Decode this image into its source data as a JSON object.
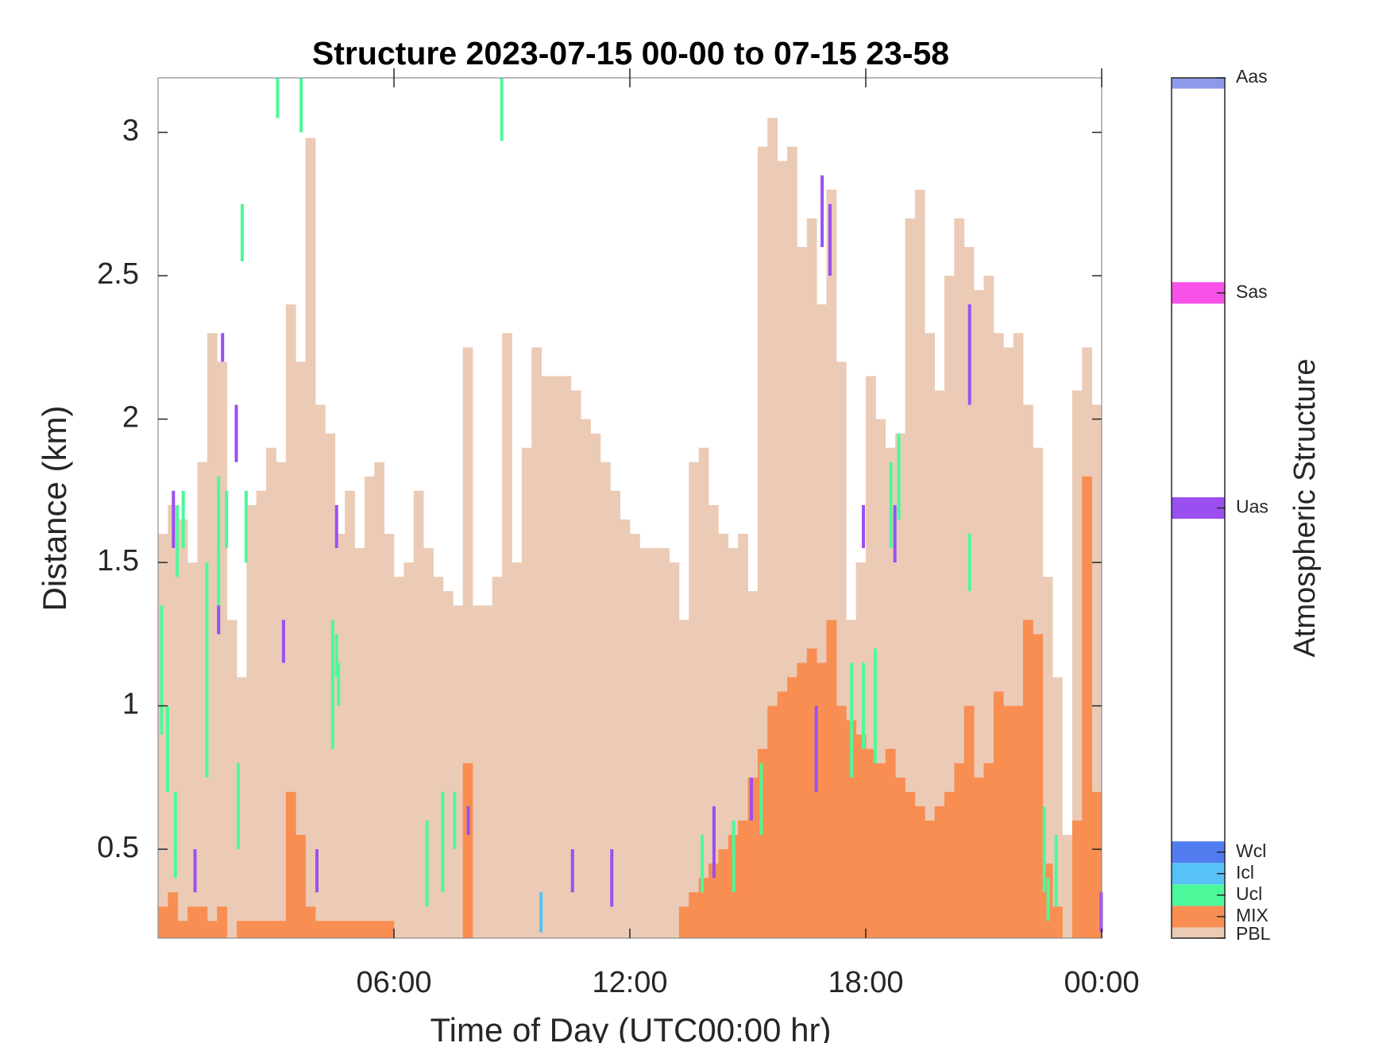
{
  "chart_data": {
    "type": "structure",
    "title": "Structure 2023-07-15 00-00 to 07-15 23-58",
    "xlabel": "Time of Day (UTC00:00 hr)",
    "ylabel": "Distance (km)",
    "xlim": [
      0,
      24
    ],
    "xticks": [
      {
        "value": 6,
        "label": "06:00"
      },
      {
        "value": 12,
        "label": "12:00"
      },
      {
        "value": 18,
        "label": "18:00"
      },
      {
        "value": 24,
        "label": "00:00"
      }
    ],
    "ylim": [
      0.19,
      3.19
    ],
    "yticks": [
      0.5,
      1,
      1.5,
      2,
      2.5,
      3
    ],
    "bin_width": 0.25,
    "x": [
      0,
      0.25,
      0.5,
      0.75,
      1,
      1.25,
      1.5,
      1.75,
      2,
      2.25,
      2.5,
      2.75,
      3,
      3.25,
      3.5,
      3.75,
      4,
      4.25,
      4.5,
      4.75,
      5,
      5.25,
      5.5,
      5.75,
      6,
      6.25,
      6.5,
      6.75,
      7,
      7.25,
      7.5,
      7.75,
      8,
      8.25,
      8.5,
      8.75,
      9,
      9.25,
      9.5,
      9.75,
      10,
      10.25,
      10.5,
      10.75,
      11,
      11.25,
      11.5,
      11.75,
      12,
      12.25,
      12.5,
      12.75,
      13,
      13.25,
      13.5,
      13.75,
      14,
      14.25,
      14.5,
      14.75,
      15,
      15.25,
      15.5,
      15.75,
      16,
      16.25,
      16.5,
      16.75,
      17,
      17.25,
      17.5,
      17.75,
      18,
      18.25,
      18.5,
      18.75,
      19,
      19.25,
      19.5,
      19.75,
      20,
      20.25,
      20.5,
      20.75,
      21,
      21.25,
      21.5,
      21.75,
      22,
      22.25,
      22.5,
      22.75,
      23,
      23.25,
      23.5,
      23.75
    ],
    "series": [
      {
        "name": "PBL",
        "values": [
          1.6,
          1.7,
          1.65,
          1.5,
          1.85,
          2.3,
          2.2,
          1.3,
          1.1,
          1.7,
          1.75,
          1.9,
          1.85,
          2.4,
          2.2,
          2.98,
          2.05,
          1.95,
          1.6,
          1.75,
          1.55,
          1.8,
          1.85,
          1.6,
          1.45,
          1.5,
          1.75,
          1.55,
          1.45,
          1.4,
          1.35,
          2.25,
          1.35,
          1.35,
          1.45,
          2.3,
          1.5,
          1.9,
          2.25,
          2.15,
          2.15,
          2.15,
          2.1,
          2.0,
          1.95,
          1.85,
          1.75,
          1.65,
          1.6,
          1.55,
          1.55,
          1.55,
          1.5,
          1.3,
          1.85,
          1.9,
          1.7,
          1.6,
          1.55,
          1.6,
          1.4,
          2.95,
          3.05,
          2.9,
          2.95,
          2.6,
          2.7,
          2.4,
          2.8,
          2.2,
          1.3,
          1.5,
          2.15,
          2.0,
          1.9,
          1.95,
          2.7,
          2.8,
          2.3,
          2.1,
          2.5,
          2.7,
          2.6,
          2.45,
          2.5,
          2.3,
          2.25,
          2.3,
          2.05,
          1.9,
          1.45,
          1.1,
          0.55,
          2.1,
          2.25,
          2.05
        ]
      },
      {
        "name": "MIX",
        "values": [
          0.3,
          0.35,
          0.25,
          0.3,
          0.3,
          0.25,
          0.3,
          null,
          0.25,
          0.25,
          0.25,
          0.25,
          0.25,
          0.7,
          0.55,
          0.3,
          0.25,
          0.25,
          0.25,
          0.25,
          0.25,
          0.25,
          0.25,
          0.25,
          null,
          null,
          null,
          null,
          null,
          null,
          null,
          0.8,
          null,
          null,
          null,
          null,
          null,
          null,
          null,
          null,
          null,
          null,
          null,
          null,
          null,
          null,
          null,
          null,
          null,
          null,
          null,
          null,
          null,
          0.3,
          0.35,
          0.4,
          0.45,
          0.5,
          0.55,
          0.6,
          0.75,
          0.85,
          1.0,
          1.05,
          1.1,
          1.15,
          1.2,
          1.15,
          1.3,
          1.0,
          0.95,
          0.9,
          0.85,
          0.8,
          0.85,
          0.75,
          0.7,
          0.65,
          0.6,
          0.65,
          0.7,
          0.8,
          1.0,
          0.75,
          0.8,
          1.05,
          1.0,
          1.0,
          1.3,
          1.25,
          0.45,
          0.3,
          null,
          0.6,
          1.8,
          0.7
        ]
      }
    ],
    "segments": [
      {
        "name": "Ucl",
        "x": [
          0.05,
          0.2,
          0.4,
          0.45,
          0.6,
          1.2,
          1.5,
          1.7,
          2.0,
          2.2,
          2.1,
          3.0,
          3.6,
          4.4,
          4.5,
          4.55,
          6.8,
          7.2,
          7.5,
          8.7,
          13.8,
          14.6,
          15.3,
          17.6,
          17.9,
          18.2,
          18.6,
          18.8,
          22.5,
          22.8,
          22.6,
          20.6
        ],
        "bottom": [
          0.9,
          0.7,
          0.4,
          1.45,
          1.55,
          0.75,
          1.25,
          1.55,
          0.5,
          1.5,
          2.55,
          3.05,
          3.0,
          0.85,
          1.1,
          1.0,
          0.3,
          0.35,
          0.5,
          2.97,
          0.35,
          0.35,
          0.55,
          0.75,
          0.85,
          0.8,
          1.55,
          1.65,
          0.35,
          0.3,
          0.25,
          1.4
        ],
        "top": [
          1.35,
          1.0,
          0.7,
          1.7,
          1.75,
          1.5,
          1.8,
          1.75,
          0.8,
          1.75,
          2.75,
          3.19,
          3.19,
          1.3,
          1.25,
          1.15,
          0.6,
          0.7,
          0.7,
          3.19,
          0.55,
          0.6,
          0.8,
          1.15,
          1.15,
          1.2,
          1.85,
          1.95,
          0.65,
          0.55,
          0.4,
          1.6
        ]
      },
      {
        "name": "Uas",
        "x": [
          0.35,
          0.9,
          1.5,
          1.6,
          1.95,
          3.15,
          4.5,
          4.0,
          7.85,
          10.5,
          11.5,
          14.1,
          15.05,
          16.7,
          16.85,
          17.05,
          17.9,
          18.7,
          20.6,
          23.95
        ],
        "bottom": [
          1.55,
          0.35,
          1.25,
          2.2,
          1.85,
          1.15,
          1.55,
          0.35,
          0.55,
          0.35,
          0.3,
          0.4,
          0.6,
          0.7,
          2.6,
          2.5,
          1.55,
          1.5,
          2.05,
          0.21
        ],
        "top": [
          1.75,
          0.5,
          1.35,
          2.3,
          2.05,
          1.3,
          1.7,
          0.5,
          0.65,
          0.5,
          0.5,
          0.65,
          0.75,
          1.0,
          2.85,
          2.75,
          1.7,
          1.7,
          2.4,
          0.35
        ]
      },
      {
        "name": "Icl",
        "x": [
          9.7
        ],
        "bottom": [
          0.21
        ],
        "top": [
          0.35
        ]
      }
    ],
    "colorbar": {
      "title": "Atmospheric Structure",
      "lim": [
        1,
        41
      ],
      "classes": [
        {
          "name": "PBL",
          "value": 1,
          "color": "#ebcbb6"
        },
        {
          "name": "MIX",
          "value": 2,
          "color": "#f98e52"
        },
        {
          "name": "Ucl",
          "value": 3,
          "color": "#4cf99a"
        },
        {
          "name": "Icl",
          "value": 4,
          "color": "#56c2f7"
        },
        {
          "name": "Wcl",
          "value": 5,
          "color": "#507cf0"
        },
        {
          "name": "Uas",
          "value": 21,
          "color": "#9a50f0"
        },
        {
          "name": "Sas",
          "value": 31,
          "color": "#f852e8"
        },
        {
          "name": "Aas",
          "value": 41,
          "color": "#8d9aea"
        }
      ]
    }
  }
}
